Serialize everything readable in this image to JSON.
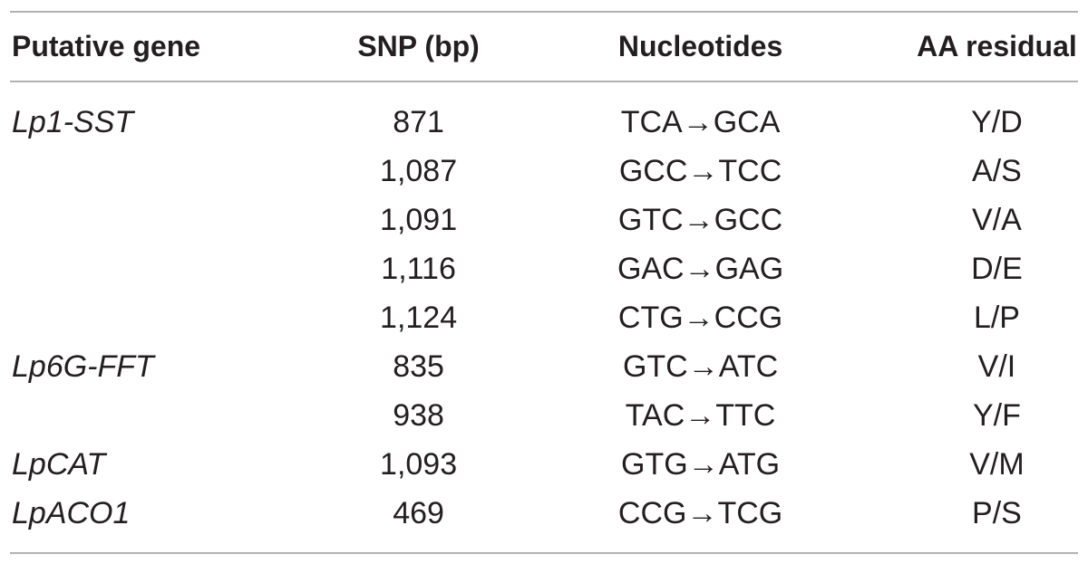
{
  "table": {
    "columns": [
      {
        "label": "Putative gene"
      },
      {
        "label": "SNP (bp)"
      },
      {
        "label": "Nucleotides"
      },
      {
        "label": "AA residual"
      }
    ],
    "rows": [
      {
        "gene": "Lp1-SST",
        "snp": "871",
        "nucleotides": "TCA→GCA",
        "aa": "Y/D"
      },
      {
        "gene": "",
        "snp": "1,087",
        "nucleotides": "GCC→TCC",
        "aa": "A/S"
      },
      {
        "gene": "",
        "snp": "1,091",
        "nucleotides": "GTC→GCC",
        "aa": "V/A"
      },
      {
        "gene": "",
        "snp": "1,116",
        "nucleotides": "GAC→GAG",
        "aa": "D/E"
      },
      {
        "gene": "",
        "snp": "1,124",
        "nucleotides": "CTG→CCG",
        "aa": "L/P"
      },
      {
        "gene": "Lp6G-FFT",
        "snp": "835",
        "nucleotides": "GTC→ATC",
        "aa": "V/I"
      },
      {
        "gene": "",
        "snp": "938",
        "nucleotides": "TAC→TTC",
        "aa": "Y/F"
      },
      {
        "gene": "LpCAT",
        "snp": "1,093",
        "nucleotides": "GTG→ATG",
        "aa": "V/M"
      },
      {
        "gene": "LpACO1",
        "snp": "469",
        "nucleotides": "CCG→TCG",
        "aa": "P/S"
      }
    ]
  },
  "colors": {
    "text": "#231f20",
    "rule": "#b2b2b2",
    "background": "#ffffff"
  }
}
